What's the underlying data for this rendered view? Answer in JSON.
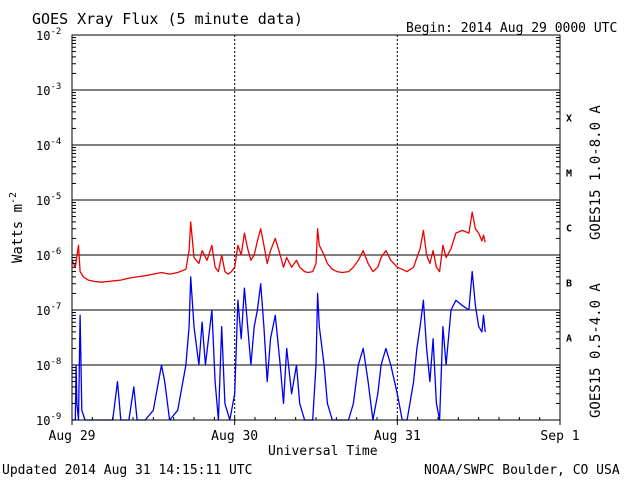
{
  "chart_data": {
    "type": "line",
    "title": "GOES Xray Flux (5 minute data)",
    "begin_label": "Begin:  2014 Aug 29 0000 UTC",
    "xlabel": "Universal Time",
    "ylabel": "Watts m",
    "ylabel_superscript": "-2",
    "y_scale": "log",
    "ylim": [
      1e-09,
      0.01
    ],
    "y_ticks": [
      {
        "base": "10",
        "exp": "-2"
      },
      {
        "base": "10",
        "exp": "-3"
      },
      {
        "base": "10",
        "exp": "-4"
      },
      {
        "base": "10",
        "exp": "-5"
      },
      {
        "base": "10",
        "exp": "-6"
      },
      {
        "base": "10",
        "exp": "-7"
      },
      {
        "base": "10",
        "exp": "-8"
      },
      {
        "base": "10",
        "exp": "-9"
      }
    ],
    "x_ticks": [
      "Aug 29",
      "Aug 30",
      "Aug 31",
      "Sep 1"
    ],
    "xlim_days": [
      0,
      3
    ],
    "flare_classes": [
      "X",
      "M",
      "C",
      "B",
      "A"
    ],
    "grid": true,
    "series": [
      {
        "name": "GOES15 1.0-8.0 A",
        "color": "#ee0000",
        "points": [
          [
            0,
            8e-07
          ],
          [
            0.02,
            6e-07
          ],
          [
            0.04,
            1.5e-06
          ],
          [
            0.05,
            5e-07
          ],
          [
            0.07,
            4e-07
          ],
          [
            0.1,
            3.5e-07
          ],
          [
            0.14,
            3.3e-07
          ],
          [
            0.18,
            3.2e-07
          ],
          [
            0.22,
            3.3e-07
          ],
          [
            0.26,
            3.4e-07
          ],
          [
            0.3,
            3.5e-07
          ],
          [
            0.35,
            3.8e-07
          ],
          [
            0.4,
            4e-07
          ],
          [
            0.45,
            4.2e-07
          ],
          [
            0.5,
            4.5e-07
          ],
          [
            0.55,
            4.8e-07
          ],
          [
            0.6,
            4.5e-07
          ],
          [
            0.65,
            4.8e-07
          ],
          [
            0.7,
            5.5e-07
          ],
          [
            0.72,
            1.2e-06
          ],
          [
            0.73,
            4e-06
          ],
          [
            0.75,
            9e-07
          ],
          [
            0.78,
            7e-07
          ],
          [
            0.8,
            1.2e-06
          ],
          [
            0.83,
            8e-07
          ],
          [
            0.86,
            1.5e-06
          ],
          [
            0.88,
            6e-07
          ],
          [
            0.9,
            5e-07
          ],
          [
            0.92,
            1e-06
          ],
          [
            0.94,
            5e-07
          ],
          [
            0.96,
            4.5e-07
          ],
          [
            0.98,
            5e-07
          ],
          [
            1.0,
            6e-07
          ],
          [
            1.02,
            1.5e-06
          ],
          [
            1.04,
            1e-06
          ],
          [
            1.06,
            2.5e-06
          ],
          [
            1.08,
            1.3e-06
          ],
          [
            1.1,
            8e-07
          ],
          [
            1.12,
            1e-06
          ],
          [
            1.14,
            1.8e-06
          ],
          [
            1.16,
            3e-06
          ],
          [
            1.18,
            1.5e-06
          ],
          [
            1.2,
            7e-07
          ],
          [
            1.22,
            1.2e-06
          ],
          [
            1.25,
            2e-06
          ],
          [
            1.28,
            1e-06
          ],
          [
            1.3,
            6e-07
          ],
          [
            1.32,
            9e-07
          ],
          [
            1.35,
            6e-07
          ],
          [
            1.38,
            8e-07
          ],
          [
            1.4,
            6e-07
          ],
          [
            1.43,
            5e-07
          ],
          [
            1.45,
            4.8e-07
          ],
          [
            1.48,
            5e-07
          ],
          [
            1.5,
            7e-07
          ],
          [
            1.51,
            3e-06
          ],
          [
            1.52,
            1.5e-06
          ],
          [
            1.55,
            1e-06
          ],
          [
            1.57,
            7e-07
          ],
          [
            1.6,
            5.5e-07
          ],
          [
            1.63,
            5e-07
          ],
          [
            1.66,
            4.8e-07
          ],
          [
            1.7,
            5e-07
          ],
          [
            1.73,
            6e-07
          ],
          [
            1.76,
            8e-07
          ],
          [
            1.79,
            1.2e-06
          ],
          [
            1.82,
            7e-07
          ],
          [
            1.85,
            5e-07
          ],
          [
            1.88,
            6e-07
          ],
          [
            1.9,
            9e-07
          ],
          [
            1.93,
            1.2e-06
          ],
          [
            1.96,
            8e-07
          ],
          [
            2.0,
            6e-07
          ],
          [
            2.03,
            5.5e-07
          ],
          [
            2.06,
            5e-07
          ],
          [
            2.1,
            6e-07
          ],
          [
            2.12,
            9e-07
          ],
          [
            2.14,
            1.3e-06
          ],
          [
            2.16,
            2.8e-06
          ],
          [
            2.18,
            1e-06
          ],
          [
            2.2,
            7e-07
          ],
          [
            2.22,
            1.2e-06
          ],
          [
            2.24,
            6e-07
          ],
          [
            2.26,
            5e-07
          ],
          [
            2.28,
            1.5e-06
          ],
          [
            2.3,
            9e-07
          ],
          [
            2.33,
            1.3e-06
          ],
          [
            2.36,
            2.5e-06
          ],
          [
            2.4,
            2.8e-06
          ],
          [
            2.44,
            2.5e-06
          ],
          [
            2.46,
            6e-06
          ],
          [
            2.48,
            3e-06
          ],
          [
            2.5,
            2.5e-06
          ],
          [
            2.52,
            1.8e-06
          ],
          [
            2.53,
            2.3e-06
          ],
          [
            2.54,
            1.7e-06
          ]
        ]
      },
      {
        "name": "GOES15 0.5-4.0 A",
        "color": "#0000ee",
        "points": [
          [
            0,
            1e-09
          ],
          [
            0.02,
            1e-09
          ],
          [
            0.025,
            1e-08
          ],
          [
            0.03,
            2e-09
          ],
          [
            0.04,
            1e-09
          ],
          [
            0.05,
            8e-08
          ],
          [
            0.06,
            1.5e-09
          ],
          [
            0.08,
            1e-09
          ],
          [
            0.15,
            1e-09
          ],
          [
            0.2,
            1e-09
          ],
          [
            0.25,
            1e-09
          ],
          [
            0.28,
            5e-09
          ],
          [
            0.3,
            1e-09
          ],
          [
            0.35,
            1e-09
          ],
          [
            0.38,
            4e-09
          ],
          [
            0.4,
            1e-09
          ],
          [
            0.45,
            1e-09
          ],
          [
            0.5,
            1.5e-09
          ],
          [
            0.55,
            1e-08
          ],
          [
            0.57,
            5e-09
          ],
          [
            0.6,
            1e-09
          ],
          [
            0.65,
            1.5e-09
          ],
          [
            0.7,
            1e-08
          ],
          [
            0.72,
            5e-08
          ],
          [
            0.73,
            4e-07
          ],
          [
            0.75,
            5e-08
          ],
          [
            0.78,
            1e-08
          ],
          [
            0.8,
            6e-08
          ],
          [
            0.82,
            1e-08
          ],
          [
            0.86,
            1e-07
          ],
          [
            0.88,
            5e-09
          ],
          [
            0.9,
            1e-09
          ],
          [
            0.92,
            5e-08
          ],
          [
            0.94,
            2e-09
          ],
          [
            0.97,
            1e-09
          ],
          [
            1.0,
            3e-09
          ],
          [
            1.02,
            1.5e-07
          ],
          [
            1.04,
            3e-08
          ],
          [
            1.06,
            2.5e-07
          ],
          [
            1.08,
            5e-08
          ],
          [
            1.1,
            1e-08
          ],
          [
            1.12,
            5e-08
          ],
          [
            1.14,
            1e-07
          ],
          [
            1.16,
            3e-07
          ],
          [
            1.18,
            5e-08
          ],
          [
            1.2,
            5e-09
          ],
          [
            1.22,
            3e-08
          ],
          [
            1.25,
            8e-08
          ],
          [
            1.28,
            1e-08
          ],
          [
            1.3,
            2e-09
          ],
          [
            1.32,
            2e-08
          ],
          [
            1.35,
            3e-09
          ],
          [
            1.38,
            1e-08
          ],
          [
            1.4,
            2e-09
          ],
          [
            1.43,
            1e-09
          ],
          [
            1.46,
            1e-09
          ],
          [
            1.48,
            1e-09
          ],
          [
            1.5,
            1e-08
          ],
          [
            1.51,
            2e-07
          ],
          [
            1.52,
            5e-08
          ],
          [
            1.55,
            1e-08
          ],
          [
            1.57,
            2e-09
          ],
          [
            1.6,
            1e-09
          ],
          [
            1.65,
            1e-09
          ],
          [
            1.7,
            1e-09
          ],
          [
            1.73,
            2e-09
          ],
          [
            1.76,
            1e-08
          ],
          [
            1.79,
            2e-08
          ],
          [
            1.82,
            5e-09
          ],
          [
            1.85,
            1e-09
          ],
          [
            1.88,
            3e-09
          ],
          [
            1.9,
            1e-08
          ],
          [
            1.93,
            2e-08
          ],
          [
            1.96,
            1e-08
          ],
          [
            2.0,
            3e-09
          ],
          [
            2.03,
            1e-09
          ],
          [
            2.06,
            1e-09
          ],
          [
            2.1,
            5e-09
          ],
          [
            2.12,
            2e-08
          ],
          [
            2.14,
            5e-08
          ],
          [
            2.16,
            1.5e-07
          ],
          [
            2.18,
            2e-08
          ],
          [
            2.2,
            5e-09
          ],
          [
            2.22,
            3e-08
          ],
          [
            2.24,
            2e-09
          ],
          [
            2.26,
            1e-09
          ],
          [
            2.28,
            5e-08
          ],
          [
            2.3,
            1e-08
          ],
          [
            2.33,
            1e-07
          ],
          [
            2.36,
            1.5e-07
          ],
          [
            2.4,
            1.2e-07
          ],
          [
            2.44,
            1e-07
          ],
          [
            2.46,
            5e-07
          ],
          [
            2.48,
            1.2e-07
          ],
          [
            2.5,
            5e-08
          ],
          [
            2.52,
            4e-08
          ],
          [
            2.53,
            8e-08
          ],
          [
            2.54,
            4e-08
          ]
        ]
      }
    ]
  },
  "footer": {
    "updated": "Updated 2014 Aug 31 14:15:11 UTC",
    "credit": "NOAA/SWPC Boulder, CO USA"
  }
}
